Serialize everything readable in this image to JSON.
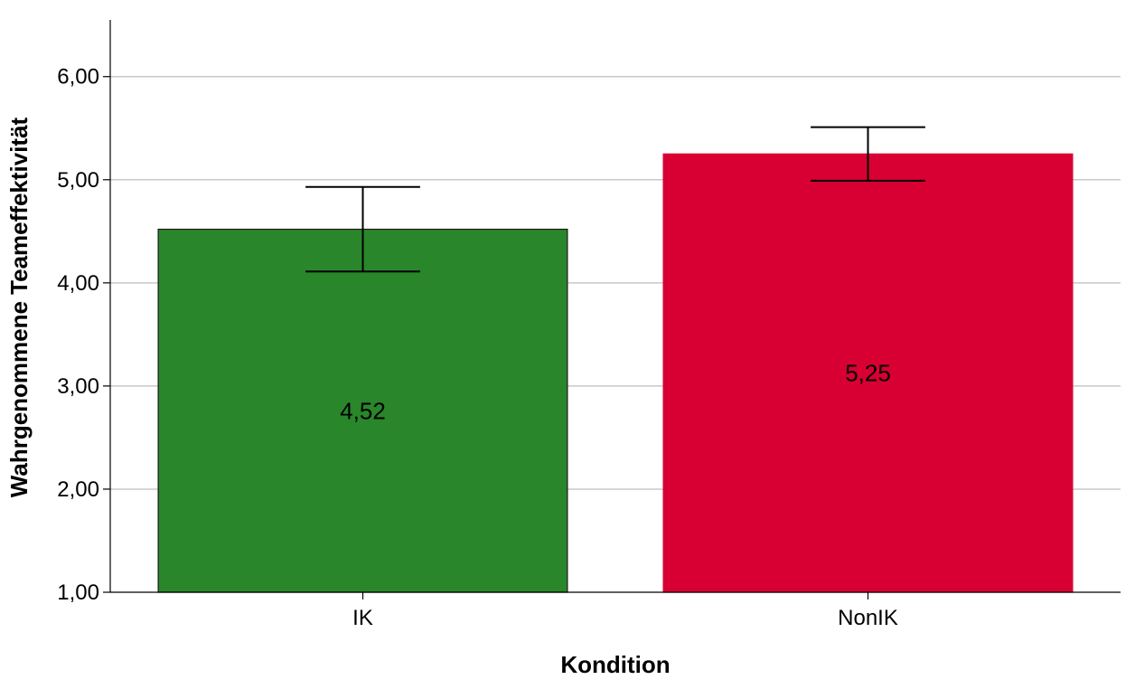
{
  "chart_data": {
    "type": "bar",
    "title": "",
    "xlabel": "Kondition",
    "ylabel": "Wahrgenommene Teameffektivität",
    "ylim": [
      1.0,
      6.55
    ],
    "yticks": [
      "1,00",
      "2,00",
      "3,00",
      "4,00",
      "5,00",
      "6,00"
    ],
    "ytick_values": [
      1,
      2,
      3,
      4,
      5,
      6
    ],
    "grid": true,
    "categories": [
      "IK",
      "NonIK"
    ],
    "values": [
      4.52,
      5.25
    ],
    "value_labels": [
      "4,52",
      "5,25"
    ],
    "error_low": [
      4.11,
      4.99
    ],
    "error_high": [
      4.93,
      5.51
    ],
    "colors": [
      "#2a862a",
      "#d80032"
    ],
    "legend": "none"
  }
}
